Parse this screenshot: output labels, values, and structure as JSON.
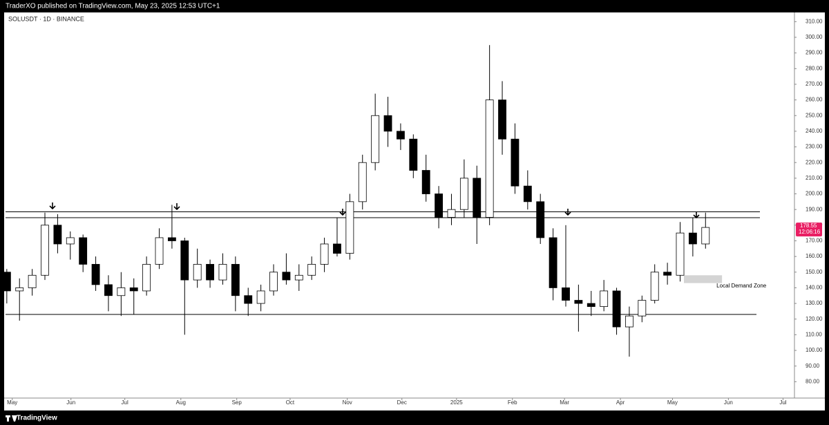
{
  "header": {
    "publisher": "TraderXO published on TradingView.com, May 23, 2025 12:53 UTC+1"
  },
  "footer": {
    "brand": "TradingView"
  },
  "chart_data": {
    "type": "candlestick",
    "title": "SOLUSDT · 1D · BINANCE",
    "up_color": "#ffffff",
    "down_color": "#000000",
    "outline_color": "#000000",
    "x": [
      0,
      1,
      2,
      3,
      4,
      5,
      6,
      7,
      8,
      9,
      10,
      11,
      12,
      13,
      14,
      15,
      16,
      17,
      18,
      19,
      20,
      21,
      22,
      23,
      24,
      25,
      26,
      27,
      28,
      29,
      30,
      31,
      32,
      33,
      34,
      35,
      36,
      37,
      38,
      39,
      40,
      41,
      42,
      43,
      44,
      45,
      46,
      47,
      48,
      49,
      50,
      51,
      52,
      53,
      54,
      55
    ],
    "open": [
      150,
      138,
      140,
      148,
      180,
      168,
      172,
      155,
      142,
      135,
      140,
      138,
      155,
      172,
      170,
      145,
      155,
      145,
      155,
      135,
      130,
      138,
      150,
      145,
      148,
      155,
      168,
      162,
      195,
      220,
      250,
      240,
      235,
      215,
      200,
      185,
      190,
      210,
      185,
      260,
      235,
      205,
      195,
      172,
      140,
      132,
      130,
      128,
      138,
      115,
      122,
      132,
      150,
      148,
      175,
      168
    ],
    "high": [
      152,
      146,
      152,
      188,
      187,
      176,
      174,
      160,
      148,
      150,
      146,
      160,
      178,
      193,
      172,
      165,
      158,
      162,
      160,
      140,
      142,
      155,
      162,
      155,
      160,
      172,
      185,
      200,
      225,
      264,
      262,
      245,
      238,
      225,
      205,
      200,
      222,
      218,
      295,
      272,
      245,
      215,
      200,
      178,
      180,
      142,
      138,
      145,
      140,
      128,
      135,
      155,
      156,
      182,
      185,
      188
    ],
    "low": [
      130,
      119,
      135,
      145,
      162,
      158,
      150,
      138,
      125,
      122,
      123,
      135,
      152,
      165,
      110,
      140,
      140,
      142,
      125,
      122,
      125,
      135,
      142,
      138,
      145,
      150,
      160,
      158,
      190,
      215,
      230,
      228,
      210,
      195,
      178,
      180,
      185,
      168,
      180,
      225,
      200,
      190,
      168,
      132,
      128,
      112,
      122,
      125,
      110,
      96,
      118,
      130,
      142,
      144,
      160,
      165
    ],
    "close": [
      138,
      140,
      148,
      180,
      168,
      172,
      155,
      142,
      135,
      140,
      138,
      155,
      172,
      170,
      145,
      155,
      145,
      155,
      135,
      130,
      138,
      150,
      145,
      148,
      155,
      168,
      162,
      195,
      220,
      250,
      240,
      235,
      215,
      200,
      185,
      190,
      210,
      185,
      260,
      235,
      205,
      195,
      172,
      140,
      132,
      130,
      128,
      138,
      115,
      122,
      132,
      150,
      148,
      175,
      168,
      178.55
    ],
    "last_price": 178.55,
    "countdown": "12:06:16",
    "levels": [
      188.5,
      184.8,
      123
    ],
    "zone": {
      "label": "Local Demand Zone",
      "x": [
        53.3,
        56.3
      ],
      "y": [
        143,
        148
      ]
    },
    "xlim": [
      -0.1,
      62
    ],
    "ylim": [
      70,
      315
    ],
    "xticks": [
      {
        "value": 0.43,
        "label": "May"
      },
      {
        "value": 5.05,
        "label": "Jun"
      },
      {
        "value": 9.29,
        "label": "Jul"
      },
      {
        "value": 13.7,
        "label": "Aug"
      },
      {
        "value": 18.1,
        "label": "Sep"
      },
      {
        "value": 22.3,
        "label": "Oct"
      },
      {
        "value": 26.8,
        "label": "Nov"
      },
      {
        "value": 31.1,
        "label": "Dec"
      },
      {
        "value": 35.4,
        "label": "2025"
      },
      {
        "value": 39.8,
        "label": "Feb"
      },
      {
        "value": 43.9,
        "label": "Mar"
      },
      {
        "value": 48.3,
        "label": "Apr"
      },
      {
        "value": 52.4,
        "label": "May"
      },
      {
        "value": 56.8,
        "label": "Jun"
      },
      {
        "value": 61.1,
        "label": "Jul"
      }
    ],
    "yticks": [
      {
        "value": 80,
        "label": "80.00"
      },
      {
        "value": 90,
        "label": "90.00"
      },
      {
        "value": 100,
        "label": "100.00"
      },
      {
        "value": 110,
        "label": "110.00"
      },
      {
        "value": 120,
        "label": "120.00"
      },
      {
        "value": 130,
        "label": "130.00"
      },
      {
        "value": 140,
        "label": "140.00"
      },
      {
        "value": 150,
        "label": "150.00"
      },
      {
        "value": 160,
        "label": "160.00"
      },
      {
        "value": 170,
        "label": "170.00"
      },
      {
        "value": 180,
        "label": "180.00"
      },
      {
        "value": 190,
        "label": "190.00"
      },
      {
        "value": 200,
        "label": "200.00"
      },
      {
        "value": 210,
        "label": "210.00"
      },
      {
        "value": 220,
        "label": "220.00"
      },
      {
        "value": 230,
        "label": "230.00"
      },
      {
        "value": 240,
        "label": "240.00"
      },
      {
        "value": 250,
        "label": "250.00"
      },
      {
        "value": 260,
        "label": "260.00"
      },
      {
        "value": 270,
        "label": "270.00"
      },
      {
        "value": 280,
        "label": "280.00"
      },
      {
        "value": 290,
        "label": "290.00"
      },
      {
        "value": 300,
        "label": "300.00"
      },
      {
        "value": 310,
        "label": "310.00"
      }
    ]
  }
}
